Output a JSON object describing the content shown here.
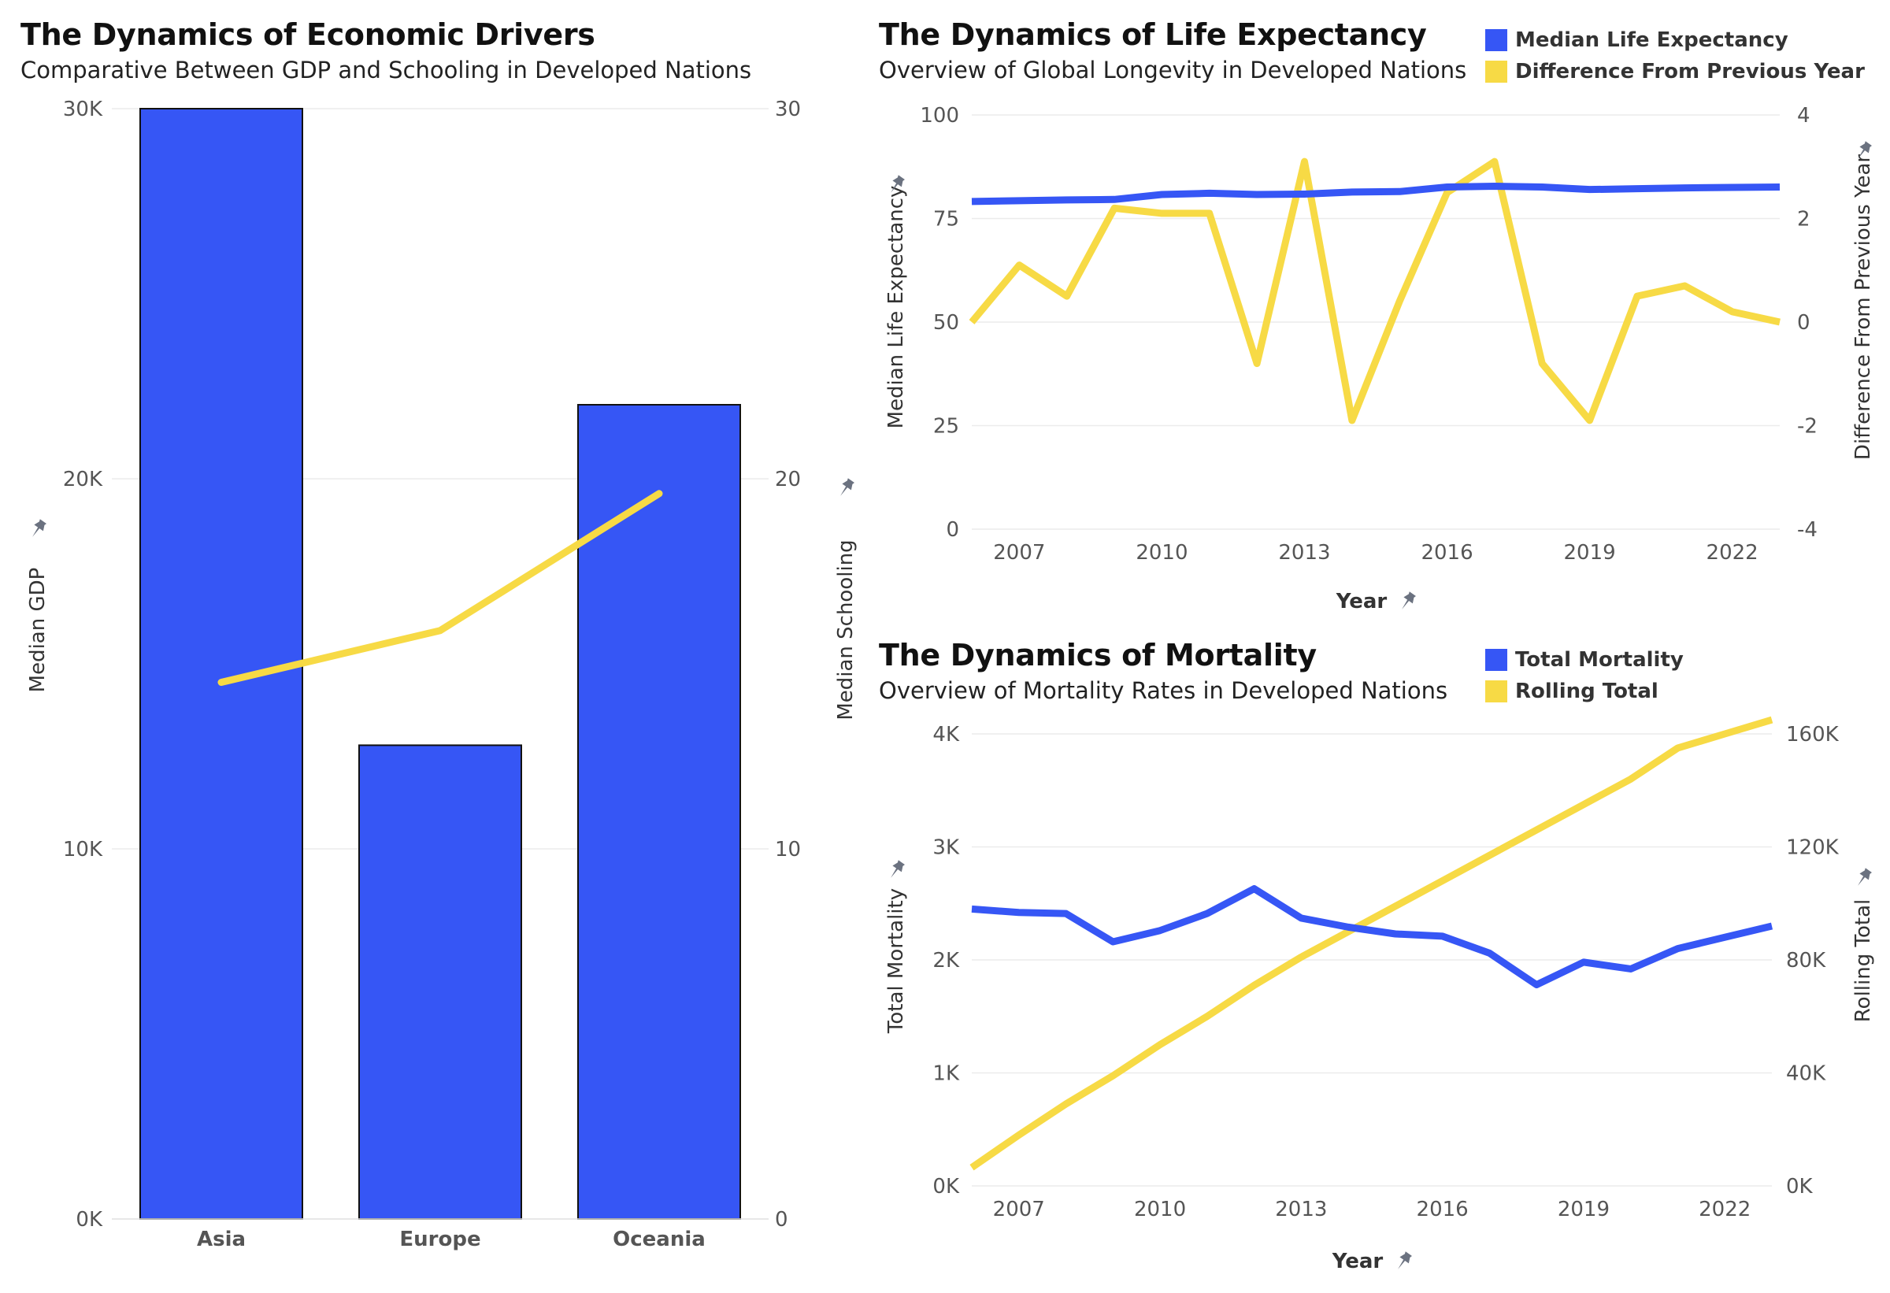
{
  "colors": {
    "blue": "#3656F5",
    "yellow": "#F7DA45",
    "grid": "#ececec",
    "pin": "#6b7280"
  },
  "left": {
    "title": "The Dynamics of Economic Drivers",
    "subtitle": "Comparative Between GDP and Schooling in Developed Nations",
    "y_label": "Median GDP",
    "y2_label": "Median Schooling",
    "y_ticks": [
      "0K",
      "10K",
      "20K",
      "30K"
    ],
    "y2_ticks": [
      "0",
      "10",
      "20",
      "30"
    ]
  },
  "top_right": {
    "title": "The Dynamics of Life Expectancy",
    "subtitle": "Overview of Global Longevity in Developed Nations",
    "legend": [
      "Median Life Expectancy",
      "Difference From Previous Year"
    ],
    "y_label": "Median Life Expectancy",
    "y2_label": "Difference From Previous Year",
    "x_label": "Year",
    "y_ticks": [
      "0",
      "25",
      "50",
      "75",
      "100"
    ],
    "y2_ticks": [
      "-4",
      "-2",
      "0",
      "2",
      "4"
    ],
    "x_ticks": [
      "2007",
      "2010",
      "2013",
      "2016",
      "2019",
      "2022"
    ]
  },
  "bottom_right": {
    "title": "The Dynamics of Mortality",
    "subtitle": "Overview of Mortality Rates in Developed Nations",
    "legend": [
      "Total Mortality",
      "Rolling Total"
    ],
    "y_label": "Total Mortality",
    "y2_label": "Rolling Total",
    "x_label": "Year",
    "y_ticks": [
      "0K",
      "1K",
      "2K",
      "3K",
      "4K"
    ],
    "y2_ticks": [
      "0K",
      "40K",
      "80K",
      "120K",
      "160K"
    ],
    "x_ticks": [
      "2007",
      "2010",
      "2013",
      "2016",
      "2019",
      "2022"
    ]
  },
  "chart_data": [
    {
      "type": "bar",
      "title": "The Dynamics of Economic Drivers",
      "subtitle": "Comparative Between GDP and Schooling in Developed Nations",
      "categories": [
        "Asia",
        "Europe",
        "Oceania"
      ],
      "series": [
        {
          "name": "Median GDP",
          "kind": "bar",
          "axis": "left",
          "values": [
            30000,
            12800,
            22000
          ]
        },
        {
          "name": "Median Schooling",
          "kind": "line",
          "axis": "right",
          "values": [
            14.5,
            15.9,
            19.6
          ]
        }
      ],
      "ylabel": "Median GDP",
      "y2label": "Median Schooling",
      "ylim": [
        0,
        30000
      ],
      "y2lim": [
        0,
        30
      ],
      "grid": true
    },
    {
      "type": "line",
      "title": "The Dynamics of Life Expectancy",
      "subtitle": "Overview of Global Longevity in Developed Nations",
      "x": [
        2006,
        2007,
        2008,
        2009,
        2010,
        2011,
        2012,
        2013,
        2014,
        2015,
        2016,
        2017,
        2018,
        2019,
        2020,
        2021,
        2022,
        2023
      ],
      "series": [
        {
          "name": "Median Life Expectancy",
          "axis": "left",
          "values": [
            79.1,
            79.3,
            79.5,
            79.6,
            80.8,
            81.1,
            80.8,
            80.9,
            81.4,
            81.5,
            82.6,
            82.8,
            82.6,
            82.0,
            82.2,
            82.4,
            82.5,
            82.6
          ]
        },
        {
          "name": "Difference From Previous Year",
          "axis": "right",
          "values": [
            0.0,
            1.1,
            0.5,
            2.2,
            2.1,
            2.1,
            -0.8,
            3.1,
            -1.9,
            0.4,
            2.5,
            3.1,
            -0.8,
            -1.9,
            0.5,
            0.7,
            0.2,
            0.0
          ]
        }
      ],
      "xlabel": "Year",
      "ylabel": "Median Life Expectancy",
      "y2label": "Difference From Previous Year",
      "ylim": [
        0,
        100
      ],
      "y2lim": [
        -4,
        4
      ],
      "legend": "top-right",
      "grid": true
    },
    {
      "type": "line",
      "title": "The Dynamics of Mortality",
      "subtitle": "Overview of Mortality Rates in Developed Nations",
      "x": [
        2006,
        2007,
        2008,
        2009,
        2010,
        2011,
        2012,
        2013,
        2014,
        2015,
        2016,
        2017,
        2018,
        2019,
        2020,
        2021,
        2022,
        2023
      ],
      "series": [
        {
          "name": "Total Mortality",
          "axis": "left",
          "values": [
            2450,
            2420,
            2410,
            2160,
            2260,
            2410,
            2630,
            2370,
            2290,
            2230,
            2210,
            2060,
            1780,
            1980,
            1920,
            2100,
            2200,
            2300
          ]
        },
        {
          "name": "Rolling Total",
          "axis": "right",
          "values": [
            6500,
            18000,
            29000,
            39000,
            50000,
            60000,
            71000,
            81000,
            90000,
            99000,
            108000,
            117000,
            126000,
            135000,
            144000,
            155000,
            160000,
            165000
          ]
        }
      ],
      "xlabel": "Year",
      "ylabel": "Total Mortality",
      "y2label": "Rolling Total",
      "ylim": [
        0,
        4000
      ],
      "y2lim": [
        0,
        160000
      ],
      "legend": "top-right",
      "grid": true
    }
  ]
}
